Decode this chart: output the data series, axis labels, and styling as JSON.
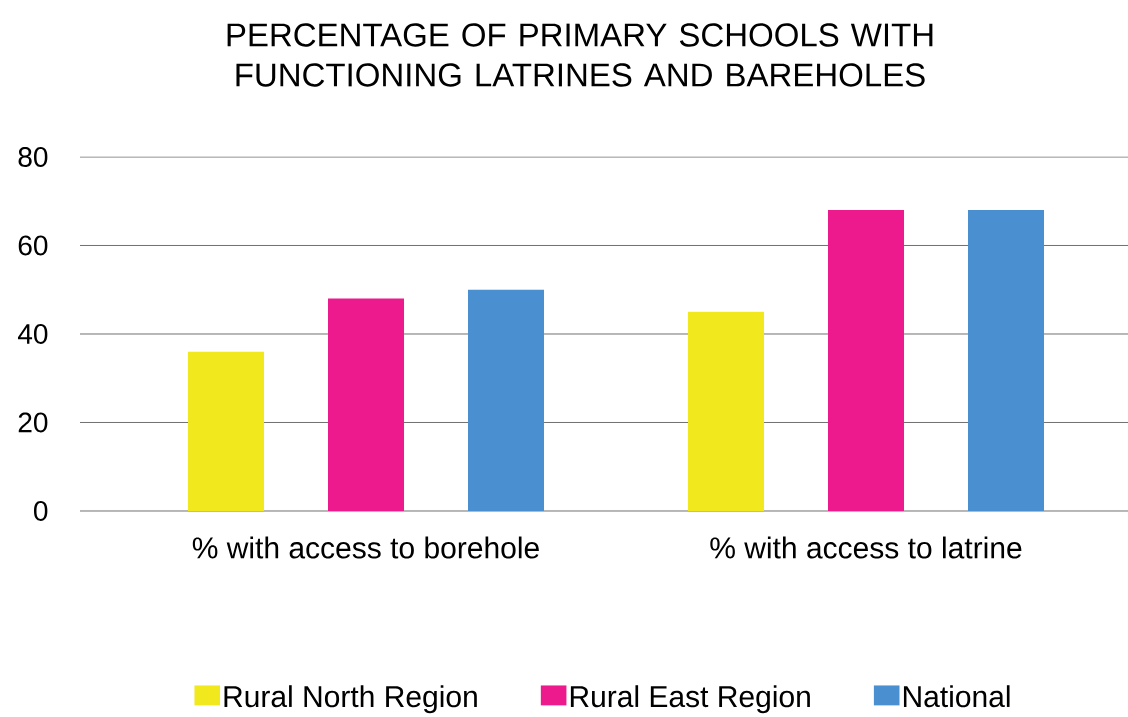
{
  "chart_data": {
    "type": "bar",
    "title": "PERCENTAGE OF PRIMARY SCHOOLS WITH\nFUNCTIONING LATRINES AND BAREHOLES",
    "categories": [
      "% with access to borehole",
      "% with access to latrine"
    ],
    "series": [
      {
        "name": "Rural North Region",
        "color": "#f2e81e",
        "values": [
          36,
          45
        ]
      },
      {
        "name": "Rural East Region",
        "color": "#ec1a8c",
        "values": [
          48,
          68
        ]
      },
      {
        "name": "National",
        "color": "#4a90d0",
        "values": [
          50,
          68
        ]
      }
    ],
    "ylim": [
      0,
      80
    ],
    "yticks": [
      0,
      20,
      40,
      60,
      80
    ],
    "grid": "y",
    "legend": "bottom"
  }
}
